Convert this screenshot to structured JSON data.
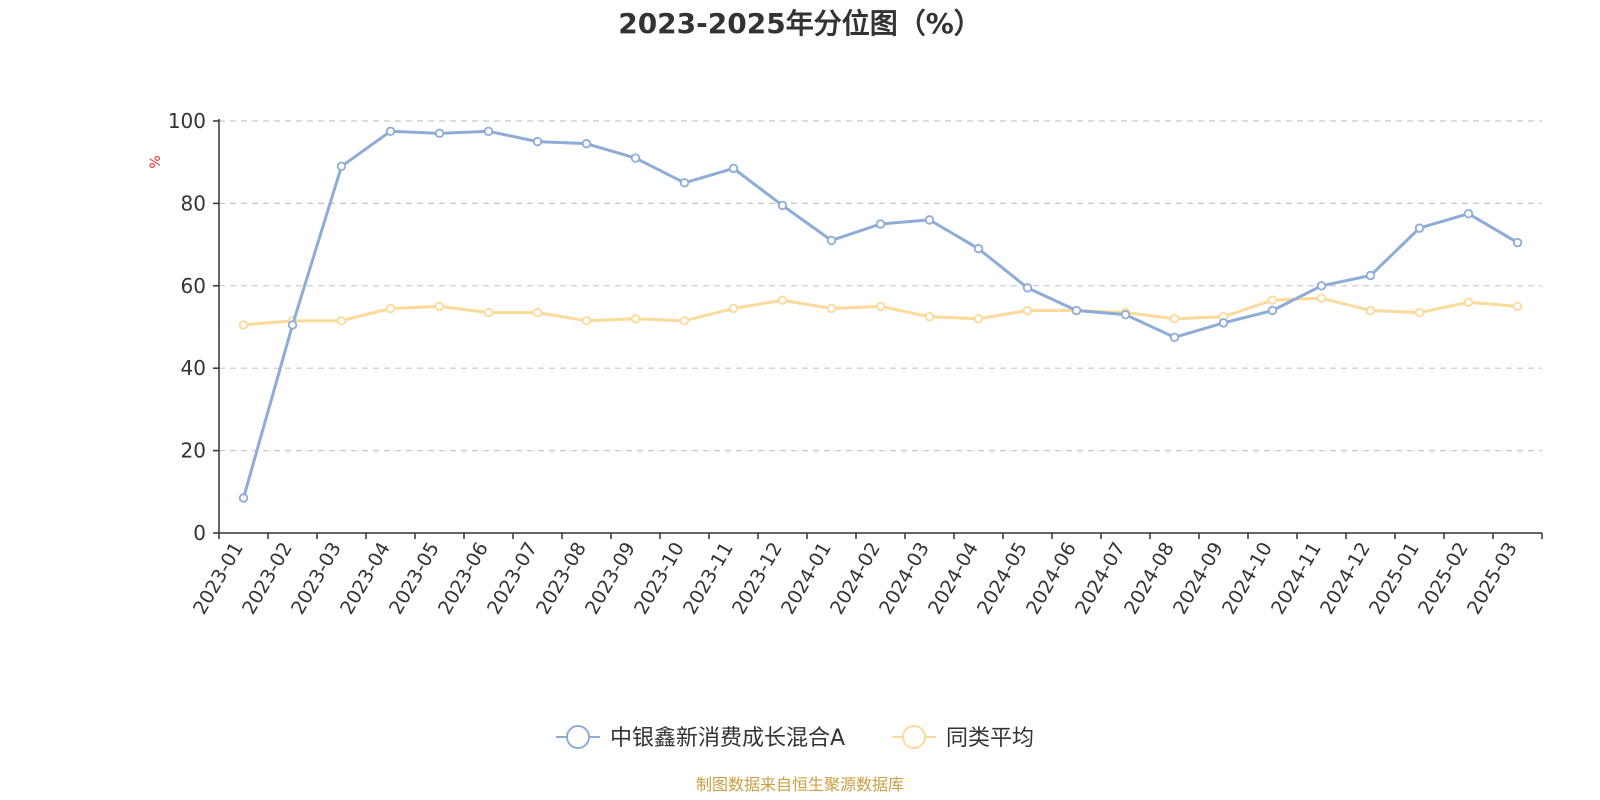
{
  "chart_data": {
    "type": "line",
    "title": "2023-2025年分位图（%）",
    "ylabel": "%",
    "ylim": [
      0,
      100
    ],
    "yticks": [
      0,
      20,
      40,
      60,
      80,
      100
    ],
    "grid": true,
    "legend_position": "bottom-center",
    "x": [
      "2023-01",
      "2023-02",
      "2023-03",
      "2023-04",
      "2023-05",
      "2023-06",
      "2023-07",
      "2023-08",
      "2023-09",
      "2023-10",
      "2023-11",
      "2023-12",
      "2024-01",
      "2024-02",
      "2024-03",
      "2024-04",
      "2024-05",
      "2024-06",
      "2024-07",
      "2024-08",
      "2024-09",
      "2024-10",
      "2024-11",
      "2024-12",
      "2025-01",
      "2025-02",
      "2025-03"
    ],
    "series": [
      {
        "name": "中银鑫新消费成长混合A",
        "color": "#8eacd8",
        "values": [
          8.5,
          50.5,
          89,
          97.5,
          97,
          97.5,
          95,
          94.5,
          91,
          85,
          88.5,
          79.5,
          71,
          75,
          76,
          69,
          59.5,
          54,
          53,
          47.5,
          51,
          54,
          60,
          62.5,
          74,
          77.5,
          70.5
        ]
      },
      {
        "name": "同类平均",
        "color": "#fdd99a",
        "values": [
          50.5,
          51.5,
          51.5,
          54.5,
          55,
          53.5,
          53.5,
          51.5,
          52,
          51.5,
          54.5,
          56.5,
          54.5,
          55,
          52.5,
          52,
          54,
          54,
          53.5,
          52,
          52.5,
          56.5,
          57,
          54,
          53.5,
          56,
          55
        ]
      }
    ]
  },
  "source_text": "制图数据来自恒生聚源数据库",
  "colors": {
    "unit_label": "#e8332a",
    "source_text": "#c8a040",
    "grid": "#c8c8c8",
    "axis": "#333333"
  }
}
